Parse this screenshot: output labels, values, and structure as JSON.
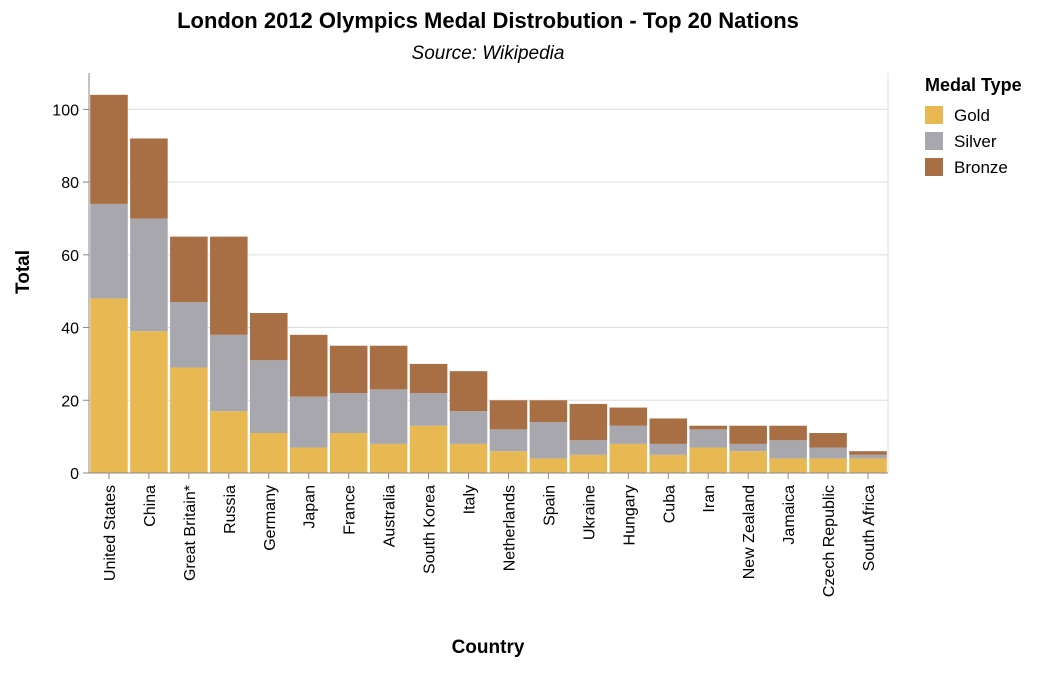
{
  "chart_data": {
    "type": "bar",
    "stacked": true,
    "title": "London 2012 Olympics Medal Distrobution - Top 20 Nations",
    "subtitle": "Source: Wikipedia",
    "xlabel": "Country",
    "ylabel": "Total",
    "ylim": [
      0,
      110
    ],
    "yticks": [
      0,
      20,
      40,
      60,
      80,
      100
    ],
    "grid": true,
    "legend_position": "right",
    "legend_title": "Medal Type",
    "categories": [
      "United States",
      "China",
      "Great Britain*",
      "Russia",
      "Germany",
      "Japan",
      "France",
      "Australia",
      "South Korea",
      "Italy",
      "Netherlands",
      "Spain",
      "Ukraine",
      "Hungary",
      "Cuba",
      "Iran",
      "New Zealand",
      "Jamaica",
      "Czech Republic",
      "South Africa"
    ],
    "series": [
      {
        "name": "Gold",
        "color": "#e8b952",
        "values": [
          48,
          39,
          29,
          17,
          11,
          7,
          11,
          8,
          13,
          8,
          6,
          4,
          5,
          8,
          5,
          7,
          6,
          4,
          4,
          4
        ]
      },
      {
        "name": "Silver",
        "color": "#a8a7ad",
        "values": [
          26,
          31,
          18,
          21,
          20,
          14,
          11,
          15,
          9,
          9,
          6,
          10,
          4,
          5,
          3,
          5,
          2,
          5,
          3,
          1
        ]
      },
      {
        "name": "Bronze",
        "color": "#a86f44",
        "values": [
          30,
          22,
          18,
          27,
          13,
          17,
          13,
          12,
          8,
          11,
          8,
          6,
          10,
          5,
          7,
          1,
          5,
          4,
          4,
          1
        ]
      }
    ]
  }
}
